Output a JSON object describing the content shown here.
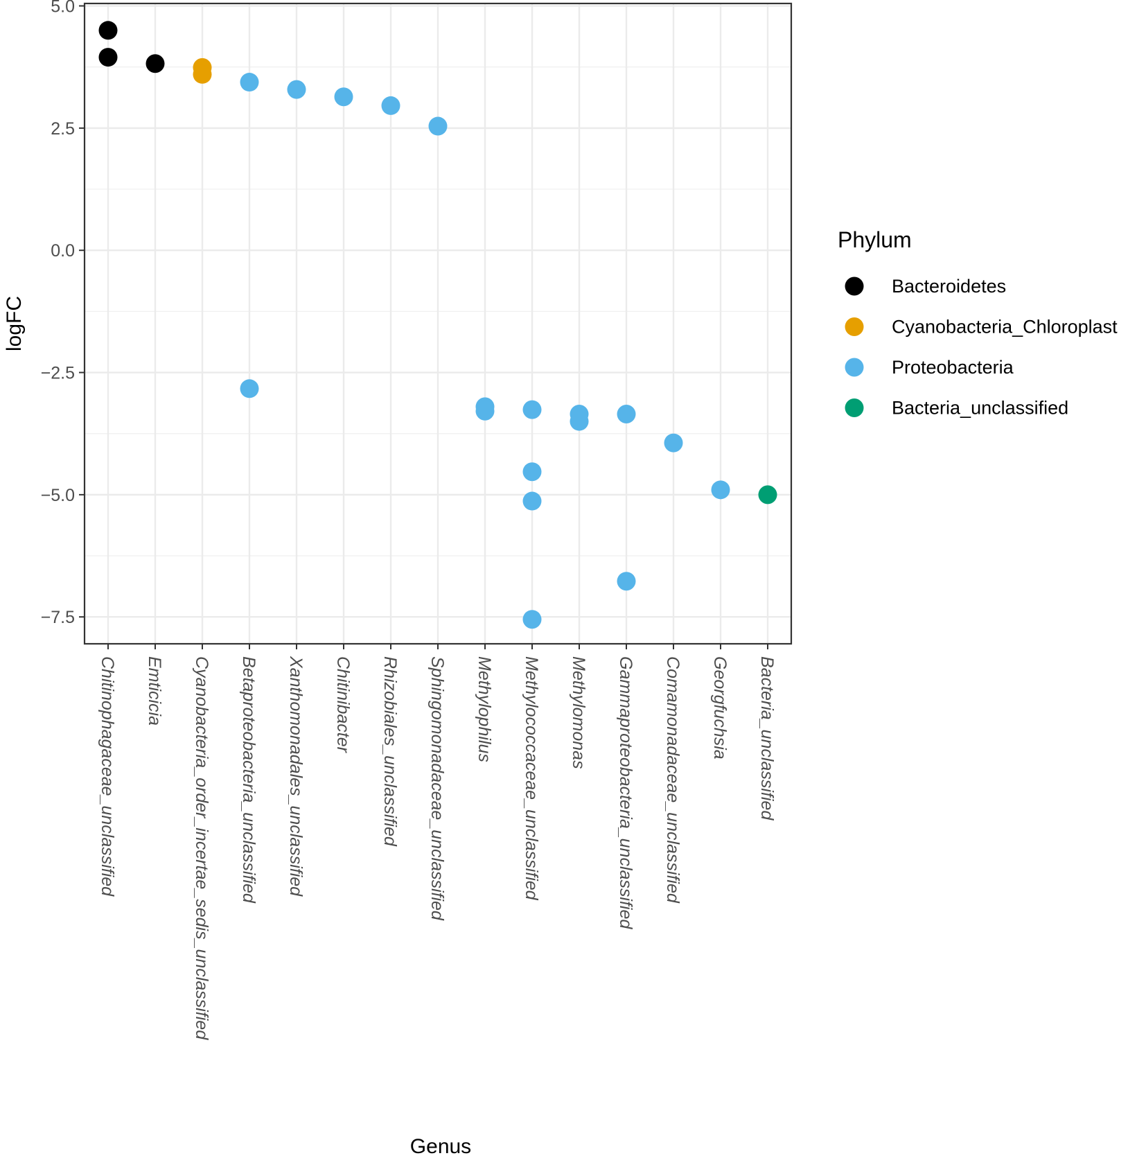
{
  "chart_data": {
    "type": "scatter",
    "title": "",
    "xlabel": "Genus",
    "ylabel": "logFC",
    "ylim": [
      -8.05,
      5.05
    ],
    "yticks": [
      "5.0",
      "2.5",
      "0.0",
      "−2.5",
      "−5.0",
      "−7.5"
    ],
    "ytick_values": [
      5,
      2.5,
      0,
      -2.5,
      -5,
      -7.5
    ],
    "grid": true,
    "categories": [
      "Chitinophagaceae_unclassified",
      "Emticicia",
      "Cyanobacteria_order_incertae_sedis_unclassified",
      "Betaproteobacteria_unclassified",
      "Xanthomonadales_unclassified",
      "Chitinibacter",
      "Rhizobiales_unclassified",
      "Sphingomonadaceae_unclassified",
      "Methylophilus",
      "Methylococcaceae_unclassified",
      "Methylomonas",
      "Gammaproteobacteria_unclassified",
      "Comamonadaceae_unclassified",
      "Georgfuchsia",
      "Bacteria_unclassified"
    ],
    "legend": {
      "title": "Phylum",
      "position": "right",
      "entries": [
        {
          "name": "Bacteroidetes",
          "color": "#000000"
        },
        {
          "name": "Cyanobacteria_Chloroplast",
          "color": "#E69F00"
        },
        {
          "name": "Proteobacteria",
          "color": "#56B4E9"
        },
        {
          "name": "Bacteria_unclassified",
          "color": "#009E73"
        }
      ]
    },
    "points": [
      {
        "genus": "Chitinophagaceae_unclassified",
        "phylum": "Bacteroidetes",
        "logFC": 4.5
      },
      {
        "genus": "Chitinophagaceae_unclassified",
        "phylum": "Bacteroidetes",
        "logFC": 3.95
      },
      {
        "genus": "Emticicia",
        "phylum": "Bacteroidetes",
        "logFC": 3.82
      },
      {
        "genus": "Cyanobacteria_order_incertae_sedis_unclassified",
        "phylum": "Cyanobacteria_Chloroplast",
        "logFC": 3.74
      },
      {
        "genus": "Cyanobacteria_order_incertae_sedis_unclassified",
        "phylum": "Cyanobacteria_Chloroplast",
        "logFC": 3.6
      },
      {
        "genus": "Betaproteobacteria_unclassified",
        "phylum": "Proteobacteria",
        "logFC": 3.44
      },
      {
        "genus": "Betaproteobacteria_unclassified",
        "phylum": "Proteobacteria",
        "logFC": -2.83
      },
      {
        "genus": "Xanthomonadales_unclassified",
        "phylum": "Proteobacteria",
        "logFC": 3.29
      },
      {
        "genus": "Chitinibacter",
        "phylum": "Proteobacteria",
        "logFC": 3.14
      },
      {
        "genus": "Rhizobiales_unclassified",
        "phylum": "Proteobacteria",
        "logFC": 2.96
      },
      {
        "genus": "Sphingomonadaceae_unclassified",
        "phylum": "Proteobacteria",
        "logFC": 2.54
      },
      {
        "genus": "Methylophilus",
        "phylum": "Proteobacteria",
        "logFC": -3.2
      },
      {
        "genus": "Methylophilus",
        "phylum": "Proteobacteria",
        "logFC": -3.29
      },
      {
        "genus": "Methylococcaceae_unclassified",
        "phylum": "Proteobacteria",
        "logFC": -3.26
      },
      {
        "genus": "Methylococcaceae_unclassified",
        "phylum": "Proteobacteria",
        "logFC": -4.53
      },
      {
        "genus": "Methylococcaceae_unclassified",
        "phylum": "Proteobacteria",
        "logFC": -5.13
      },
      {
        "genus": "Methylococcaceae_unclassified",
        "phylum": "Proteobacteria",
        "logFC": -7.55
      },
      {
        "genus": "Methylomonas",
        "phylum": "Proteobacteria",
        "logFC": -3.35
      },
      {
        "genus": "Methylomonas",
        "phylum": "Proteobacteria",
        "logFC": -3.5
      },
      {
        "genus": "Gammaproteobacteria_unclassified",
        "phylum": "Proteobacteria",
        "logFC": -3.35
      },
      {
        "genus": "Gammaproteobacteria_unclassified",
        "phylum": "Proteobacteria",
        "logFC": -6.77
      },
      {
        "genus": "Comamonadaceae_unclassified",
        "phylum": "Proteobacteria",
        "logFC": -3.94
      },
      {
        "genus": "Georgfuchsia",
        "phylum": "Proteobacteria",
        "logFC": -4.9
      },
      {
        "genus": "Bacteria_unclassified",
        "phylum": "Bacteria_unclassified",
        "logFC": -5.0
      }
    ]
  }
}
